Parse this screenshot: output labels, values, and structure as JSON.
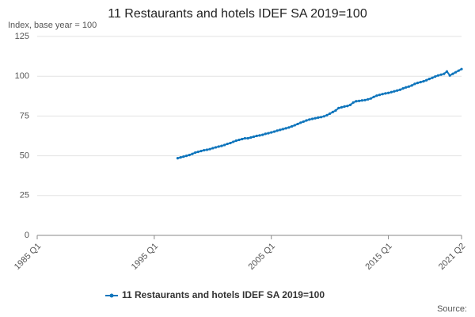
{
  "chart_data": {
    "type": "line",
    "title": "11 Restaurants and hotels IDEF SA 2019=100",
    "subtitle": "Index, base year = 100",
    "source": "Source:",
    "categories": [
      "1985 Q1",
      null,
      null,
      null,
      null,
      null,
      null,
      null,
      null,
      null,
      null,
      null,
      null,
      null,
      null,
      null,
      null,
      null,
      null,
      null,
      null,
      null,
      null,
      null,
      null,
      null,
      null,
      null,
      null,
      null,
      null,
      null,
      null,
      null,
      null,
      null,
      null,
      null,
      null,
      null,
      "1995 Q1",
      null,
      null,
      null,
      null,
      null,
      null,
      null,
      null,
      null,
      null,
      null,
      null,
      null,
      null,
      null,
      null,
      null,
      null,
      null,
      null,
      null,
      null,
      null,
      null,
      null,
      null,
      null,
      null,
      null,
      null,
      null,
      null,
      null,
      null,
      null,
      null,
      null,
      null,
      null,
      "2005 Q1",
      null,
      null,
      null,
      null,
      null,
      null,
      null,
      null,
      null,
      null,
      null,
      null,
      null,
      null,
      null,
      null,
      null,
      null,
      null,
      null,
      null,
      null,
      null,
      null,
      null,
      null,
      null,
      null,
      null,
      null,
      null,
      null,
      null,
      null,
      null,
      null,
      null,
      null,
      null,
      "2015 Q1",
      null,
      null,
      null,
      null,
      null,
      null,
      null,
      null,
      null,
      null,
      null,
      null,
      null,
      null,
      null,
      null,
      null,
      null,
      null,
      null,
      null,
      null,
      null,
      null,
      "2021 Q2"
    ],
    "series": [
      {
        "name": "11 Restaurants and hotels IDEF SA 2019=100",
        "color": "#0f75bc",
        "values": [
          null,
          null,
          null,
          null,
          null,
          null,
          null,
          null,
          null,
          null,
          null,
          null,
          null,
          null,
          null,
          null,
          null,
          null,
          null,
          null,
          null,
          null,
          null,
          null,
          null,
          null,
          null,
          null,
          null,
          null,
          null,
          null,
          null,
          null,
          null,
          null,
          null,
          null,
          null,
          null,
          null,
          null,
          null,
          null,
          null,
          null,
          null,
          null,
          48.5,
          49.0,
          49.5,
          50.0,
          50.5,
          51.2,
          52.0,
          52.5,
          53.0,
          53.5,
          53.8,
          54.2,
          54.8,
          55.3,
          55.8,
          56.2,
          56.8,
          57.5,
          58.0,
          58.8,
          59.5,
          60.0,
          60.5,
          61.0,
          61.0,
          61.5,
          62.0,
          62.5,
          62.8,
          63.2,
          63.8,
          64.2,
          64.7,
          65.2,
          65.8,
          66.3,
          66.8,
          67.3,
          67.8,
          68.5,
          69.2,
          70.0,
          70.8,
          71.5,
          72.2,
          72.8,
          73.2,
          73.6,
          74.0,
          74.3,
          74.8,
          75.5,
          76.5,
          77.5,
          78.5,
          80.0,
          80.5,
          81.0,
          81.3,
          82.0,
          83.5,
          84.3,
          84.5,
          84.8,
          85.0,
          85.5,
          86.0,
          87.0,
          87.8,
          88.3,
          88.8,
          89.2,
          89.5,
          90.0,
          90.5,
          91.0,
          91.5,
          92.3,
          93.0,
          93.5,
          94.2,
          95.2,
          95.8,
          96.3,
          96.8,
          97.5,
          98.3,
          99.0,
          99.8,
          100.5,
          101.0,
          101.5,
          103.0,
          100.5,
          101.5,
          102.5,
          103.5,
          104.5
        ]
      }
    ],
    "ylim": [
      0,
      125
    ],
    "yticks": [
      0,
      25,
      50,
      75,
      100,
      125
    ],
    "grid": true
  }
}
